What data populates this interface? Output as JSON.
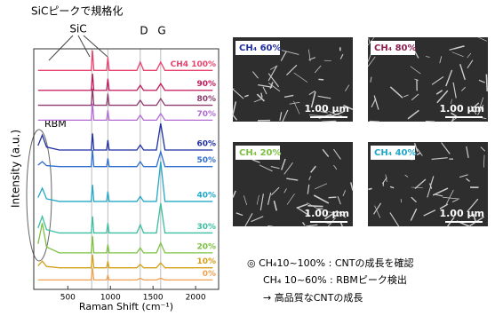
{
  "chart_data": {
    "type": "line",
    "title": "SiCピークで規格化",
    "x_label": "Raman Shift (cm⁻¹)",
    "y_label": "Intensity (a.u.)",
    "annotations": [
      "SiC",
      "D",
      "G",
      "RBM"
    ],
    "peak_lines": [
      780,
      970,
      1350,
      1590
    ],
    "x": [
      150,
      200,
      250,
      400,
      700,
      775,
      790,
      805,
      955,
      970,
      985,
      1200,
      1310,
      1350,
      1390,
      1540,
      1590,
      1640,
      2000,
      2200
    ],
    "xlim": [
      100,
      2270
    ],
    "xticks": [
      500,
      1000,
      1500,
      2000
    ],
    "ylim": [
      0,
      14.5
    ],
    "series": [
      {
        "name": "CH4 100%",
        "color": "#e8436e",
        "values": [
          13.2,
          13.2,
          13.2,
          13.2,
          13.2,
          13.2,
          14.4,
          13.2,
          13.2,
          14.0,
          13.2,
          13.2,
          13.2,
          13.7,
          13.2,
          13.2,
          13.7,
          13.2,
          13.2,
          13.2
        ]
      },
      {
        "name": "90%",
        "color": "#c2185b",
        "values": [
          12,
          12,
          12,
          12,
          12,
          12,
          13,
          12,
          12,
          12.7,
          12,
          12,
          12,
          12.3,
          12,
          12,
          12.4,
          12,
          12,
          12
        ]
      },
      {
        "name": "80%",
        "color": "#8e3a6e",
        "values": [
          11.1,
          11.1,
          11.1,
          11.1,
          11.1,
          11.1,
          12.1,
          11.1,
          11.1,
          11.8,
          11.1,
          11.1,
          11.1,
          11.4,
          11.1,
          11.1,
          11.5,
          11.1,
          11.1,
          11.1
        ]
      },
      {
        "name": "70%",
        "color": "#b36bd4",
        "values": [
          10.2,
          10.2,
          10.2,
          10.2,
          10.2,
          10.2,
          11.2,
          10.2,
          10.2,
          10.8,
          10.2,
          10.2,
          10.2,
          10.5,
          10.2,
          10.2,
          10.6,
          10.2,
          10.2,
          10.2
        ]
      },
      {
        "name": "60%",
        "color": "#1f2fa0",
        "values": [
          8.67,
          9.3,
          8.58,
          8.4,
          8.4,
          8.4,
          9.4,
          8.4,
          8.4,
          9.0,
          8.4,
          8.4,
          8.4,
          8.7,
          8.4,
          8.4,
          10.0,
          8.4,
          8.4,
          8.4
        ]
      },
      {
        "name": "50%",
        "color": "#2f6fd0",
        "values": [
          7.49,
          7.7,
          7.46,
          7.4,
          7.4,
          7.4,
          8.4,
          7.4,
          7.4,
          7.9,
          7.4,
          7.4,
          7.4,
          7.7,
          7.4,
          7.4,
          8.3,
          7.4,
          7.4,
          7.4
        ]
      },
      {
        "name": "40%",
        "color": "#22a8c8",
        "values": [
          5.54,
          6.1,
          5.46,
          5.3,
          5.3,
          5.3,
          6.3,
          5.3,
          5.3,
          5.9,
          5.3,
          5.3,
          5.3,
          5.6,
          5.3,
          5.3,
          7.7,
          5.3,
          5.3,
          5.3
        ]
      },
      {
        "name": "30%",
        "color": "#3bbfa0",
        "values": [
          3.7,
          4.4,
          3.6,
          3.4,
          3.4,
          3.4,
          4.4,
          3.4,
          3.4,
          4.0,
          3.4,
          3.4,
          3.4,
          3.9,
          3.4,
          3.4,
          5.2,
          3.4,
          3.4,
          3.4
        ]
      },
      {
        "name": "20%",
        "color": "#7cc142",
        "values": [
          2.74,
          4.0,
          2.56,
          2.2,
          2.2,
          2.2,
          3.2,
          2.2,
          2.2,
          2.7,
          2.2,
          2.2,
          2.2,
          2.5,
          2.2,
          2.2,
          2.8,
          2.2,
          2.2,
          2.2
        ]
      },
      {
        "name": "10%",
        "color": "#d4a017",
        "values": [
          1.42,
          1.7,
          1.38,
          1.3,
          1.3,
          1.3,
          2.1,
          1.3,
          1.3,
          1.7,
          1.3,
          1.3,
          1.3,
          1.5,
          1.3,
          1.3,
          1.6,
          1.3,
          1.3,
          1.3
        ]
      },
      {
        "name": "0%",
        "color": "#f0a050",
        "values": [
          0.57,
          0.57,
          0.57,
          0.57,
          0.57,
          0.57,
          1.27,
          0.57,
          0.57,
          0.87,
          0.57,
          0.57,
          0.57,
          0.67,
          0.57,
          0.57,
          0.67,
          0.57,
          0.57,
          0.57
        ]
      }
    ]
  },
  "sem_images": [
    {
      "label": "CH₄ 60%",
      "color": "#1f2fa0",
      "scale": "1.00 μm"
    },
    {
      "label": "CH₄ 80%",
      "color": "#8e2050",
      "scale": "1.00 μm"
    },
    {
      "label": "CH₄ 20%",
      "color": "#7cc142",
      "scale": "1.00 μm"
    },
    {
      "label": "CH₄ 40%",
      "color": "#22a8c8",
      "scale": "1.00 μm"
    }
  ],
  "notes": [
    "◎ CH₄10~100% : CNTの成長を確認",
    "CH₄ 10~60% : RBMピーク検出",
    "→ 高品質なCNTの成長"
  ]
}
